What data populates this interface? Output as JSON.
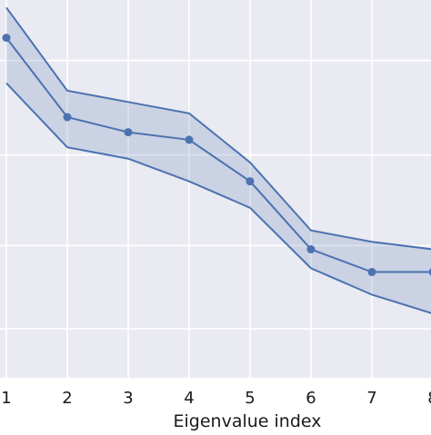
{
  "chart_data": {
    "type": "line",
    "title": "",
    "xlabel": "Eigenvalue index",
    "ylabel": "",
    "x": [
      1,
      2,
      3,
      4,
      5,
      6,
      7,
      8
    ],
    "xlim": [
      0.95,
      8.0
    ],
    "ylim": [
      0,
      1
    ],
    "yticks": [
      0.13,
      0.35,
      0.59,
      0.84
    ],
    "grid": true,
    "legend": "none",
    "series": [
      {
        "values": [
          0.9,
          0.69,
          0.65,
          0.63,
          0.52,
          0.34,
          0.28,
          0.28
        ],
        "upper": [
          0.98,
          0.76,
          0.73,
          0.7,
          0.57,
          0.39,
          0.36,
          0.34
        ],
        "lower": [
          0.78,
          0.61,
          0.58,
          0.52,
          0.45,
          0.29,
          0.22,
          0.17
        ]
      }
    ],
    "colors": {
      "background": "#eaeaf2",
      "grid": "#ffffff",
      "line": "#4c72b0",
      "band": "#4c72b0"
    }
  }
}
